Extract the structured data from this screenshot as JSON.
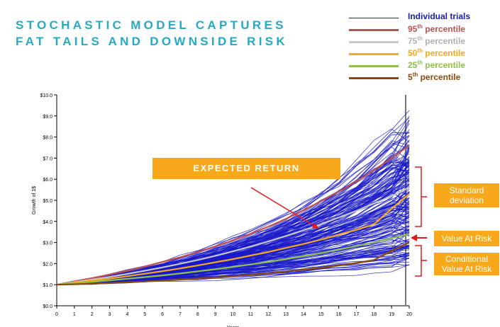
{
  "title_lines": [
    "STOCHASTIC MODEL CAPTURES",
    "FAT TAILS AND DOWNSIDE RISK"
  ],
  "legend": [
    {
      "name": "Individual trials",
      "color": "#1a1ac8",
      "text_color": "#1a1ab8",
      "sup": ""
    },
    {
      "name": " percentile",
      "prefix": "95",
      "sup": "th",
      "color": "#c0504d",
      "text_color": "#c0504d"
    },
    {
      "name": " percentile",
      "prefix": "75",
      "sup": "th",
      "color": "#c8c8c8",
      "text_color": "#b0b0b0"
    },
    {
      "name": " percentile",
      "prefix": "50",
      "sup": "th",
      "color": "#f7a81b",
      "text_color": "#f7a81b"
    },
    {
      "name": " percentile",
      "prefix": "25",
      "sup": "th",
      "color": "#8dc14a",
      "text_color": "#8dc14a"
    },
    {
      "name": " percentile",
      "prefix": "5",
      "sup": "th",
      "color": "#8a4a0a",
      "text_color": "#8a4a0a"
    }
  ],
  "callouts": {
    "expected_return": "EXPECTED RETURN",
    "standard_deviation": "Standard deviation",
    "value_at_risk": "Value At Risk",
    "conditional_var": "Conditional Value At Risk"
  },
  "chart_data": {
    "type": "line",
    "xlabel": "Years",
    "ylabel": "Growth of 1$",
    "x": [
      0,
      1,
      2,
      3,
      4,
      5,
      6,
      7,
      8,
      9,
      10,
      11,
      12,
      13,
      14,
      15,
      16,
      17,
      18,
      19,
      20
    ],
    "xlim": [
      0,
      20
    ],
    "ylim": [
      0,
      10
    ],
    "y_ticks": [
      "$0.0",
      "$1.0",
      "$2.0",
      "$3.0",
      "$4.0",
      "$5.0",
      "$6.0",
      "$7.0",
      "$8.0",
      "$9.0",
      "$10.0"
    ],
    "grid": false,
    "series": [
      {
        "name": "95th percentile",
        "color": "#c0504d",
        "values": [
          1.0,
          1.16,
          1.31,
          1.48,
          1.66,
          1.86,
          2.08,
          2.3,
          2.55,
          2.82,
          3.1,
          3.41,
          3.75,
          4.12,
          4.53,
          4.96,
          5.41,
          5.9,
          6.43,
          7.0,
          7.6
        ]
      },
      {
        "name": "75th percentile",
        "color": "#c8c8c8",
        "values": [
          1.0,
          1.12,
          1.24,
          1.37,
          1.51,
          1.66,
          1.82,
          1.99,
          2.17,
          2.37,
          2.58,
          2.81,
          3.05,
          3.31,
          3.58,
          3.87,
          4.18,
          4.5,
          4.85,
          5.2,
          5.6
        ]
      },
      {
        "name": "50th percentile",
        "color": "#f7a81b",
        "values": [
          1.0,
          1.09,
          1.19,
          1.29,
          1.4,
          1.52,
          1.64,
          1.77,
          1.91,
          2.06,
          2.21,
          2.38,
          2.55,
          2.74,
          2.93,
          3.14,
          3.37,
          3.6,
          3.86,
          4.6,
          5.3
        ]
      },
      {
        "name": "25th percentile",
        "color": "#8dc14a",
        "values": [
          1.0,
          1.06,
          1.13,
          1.2,
          1.28,
          1.36,
          1.44,
          1.53,
          1.63,
          1.73,
          1.84,
          1.96,
          2.08,
          2.21,
          2.35,
          2.5,
          2.66,
          2.83,
          3.01,
          3.2,
          3.4
        ]
      },
      {
        "name": "5th percentile",
        "color": "#8a4a0a",
        "values": [
          1.0,
          1.02,
          1.05,
          1.08,
          1.11,
          1.15,
          1.19,
          1.24,
          1.29,
          1.34,
          1.4,
          1.47,
          1.54,
          1.62,
          1.71,
          1.8,
          1.91,
          2.03,
          2.17,
          2.6,
          3.0
        ]
      }
    ],
    "trials": {
      "count": 200,
      "start": 1.0,
      "end_range": [
        1.9,
        9.4
      ],
      "color": "#1a1ac8"
    }
  }
}
